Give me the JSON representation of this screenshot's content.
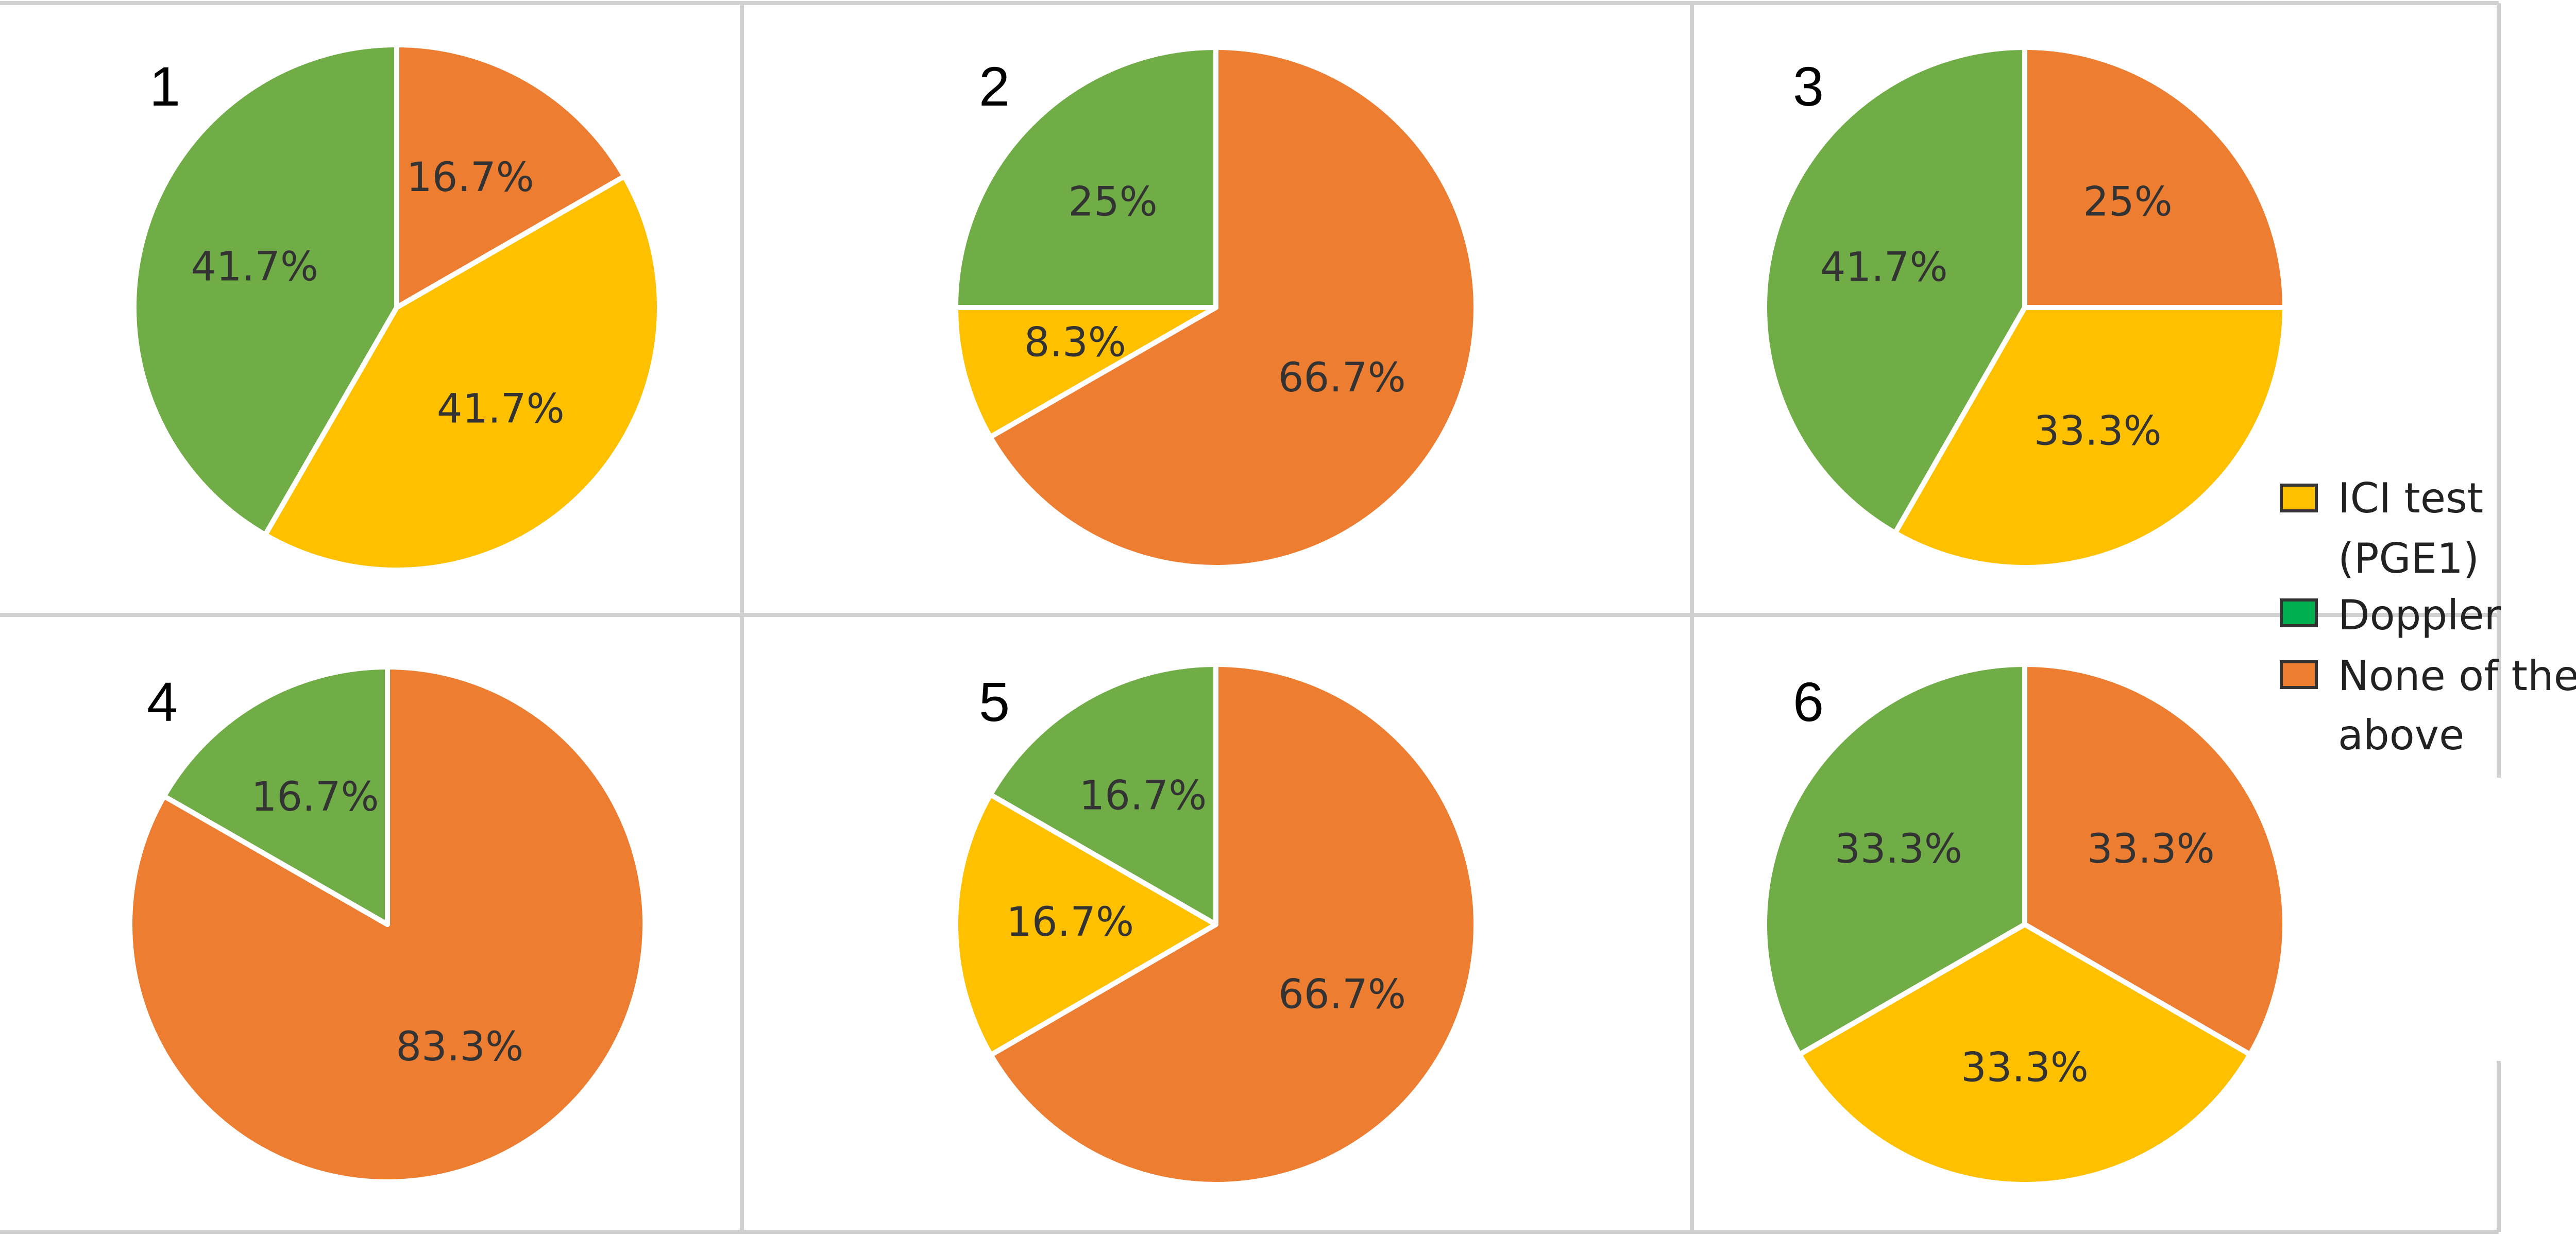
{
  "colors": {
    "ici_test": "#FFC000",
    "doppler": "#70AD47",
    "none_of_the_above": "#ED7D31",
    "legend_doppler_swatch": "#00B050"
  },
  "legend": {
    "items": [
      {
        "key": "ici_test",
        "lines": [
          "ICI test",
          "(PGE1)"
        ]
      },
      {
        "key": "doppler",
        "lines": [
          "Doppler"
        ]
      },
      {
        "key": "none_of_the_above",
        "lines": [
          "None of the",
          "above"
        ]
      }
    ]
  },
  "chart_data": [
    {
      "type": "pie",
      "panel_label": "1",
      "slices": [
        {
          "key": "none_of_the_above",
          "value": 16.7,
          "label": "16.7%"
        },
        {
          "key": "ici_test",
          "value": 41.7,
          "label": "41.7%"
        },
        {
          "key": "doppler",
          "value": 41.7,
          "label": "41.7%"
        }
      ]
    },
    {
      "type": "pie",
      "panel_label": "2",
      "slices": [
        {
          "key": "none_of_the_above",
          "value": 66.7,
          "label": "66.7%"
        },
        {
          "key": "ici_test",
          "value": 8.3,
          "label": "8.3%"
        },
        {
          "key": "doppler",
          "value": 25,
          "label": "25%"
        }
      ]
    },
    {
      "type": "pie",
      "panel_label": "3",
      "slices": [
        {
          "key": "none_of_the_above",
          "value": 25,
          "label": "25%"
        },
        {
          "key": "ici_test",
          "value": 33.3,
          "label": "33.3%"
        },
        {
          "key": "doppler",
          "value": 41.7,
          "label": "41.7%"
        }
      ]
    },
    {
      "type": "pie",
      "panel_label": "4",
      "slices": [
        {
          "key": "none_of_the_above",
          "value": 83.3,
          "label": "83.3%"
        },
        {
          "key": "doppler",
          "value": 16.7,
          "label": "16.7%"
        }
      ]
    },
    {
      "type": "pie",
      "panel_label": "5",
      "slices": [
        {
          "key": "none_of_the_above",
          "value": 66.7,
          "label": "66.7%"
        },
        {
          "key": "ici_test",
          "value": 16.7,
          "label": "16.7%"
        },
        {
          "key": "doppler",
          "value": 16.7,
          "label": "16.7%"
        }
      ]
    },
    {
      "type": "pie",
      "panel_label": "6",
      "slices": [
        {
          "key": "none_of_the_above",
          "value": 33.3,
          "label": "33.3%"
        },
        {
          "key": "ici_test",
          "value": 33.3,
          "label": "33.3%"
        },
        {
          "key": "doppler",
          "value": 33.3,
          "label": "33.3%"
        }
      ]
    }
  ]
}
